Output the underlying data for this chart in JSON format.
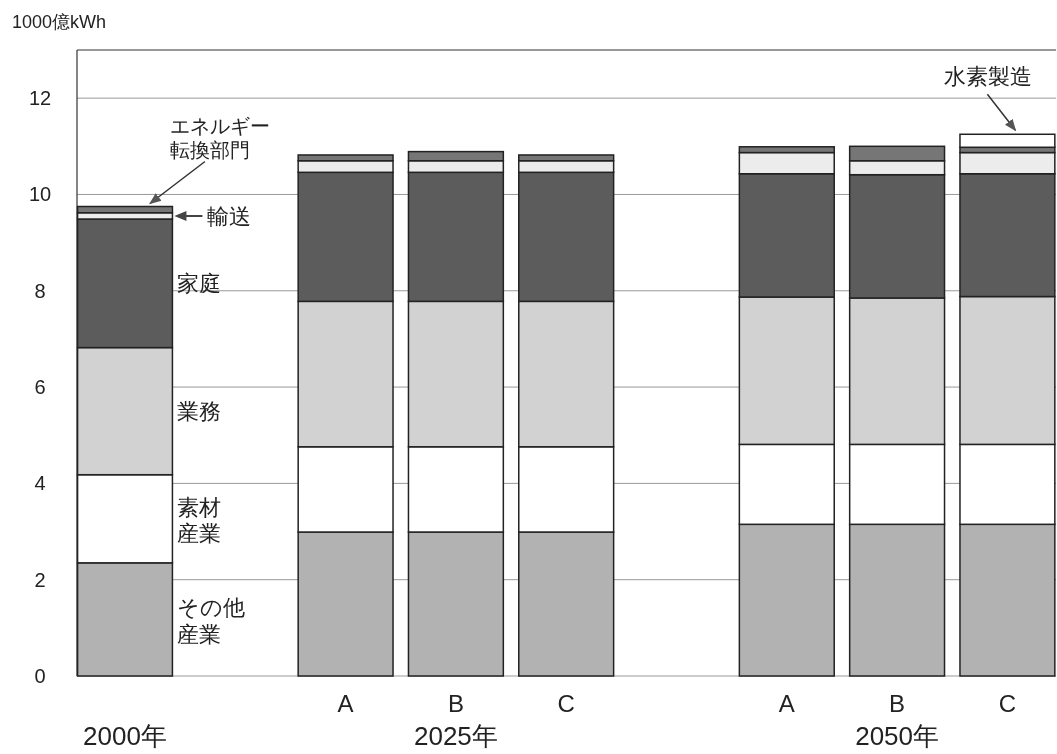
{
  "chart_data": {
    "type": "bar",
    "stacked": true,
    "ylabel": "1000億kWh",
    "categories": [
      null,
      null,
      "A",
      "B",
      "C",
      null,
      "A",
      "B",
      "C"
    ],
    "series": [
      {
        "name": "その他産業",
        "color": "#b2b2b2",
        "values": [
          2.35,
          null,
          2.99,
          2.99,
          2.99,
          null,
          3.15,
          3.15,
          3.15
        ]
      },
      {
        "name": "素材産業",
        "color": "#ffffff",
        "values": [
          1.83,
          null,
          1.77,
          1.77,
          1.77,
          null,
          1.66,
          1.66,
          1.66
        ]
      },
      {
        "name": "業務",
        "color": "#d2d2d2",
        "values": [
          2.64,
          null,
          3.02,
          3.02,
          3.02,
          null,
          3.06,
          3.04,
          3.07
        ]
      },
      {
        "name": "家庭",
        "color": "#5c5c5c",
        "values": [
          2.67,
          null,
          2.68,
          2.68,
          2.68,
          null,
          2.56,
          2.56,
          2.55
        ]
      },
      {
        "name": "輸送",
        "color": "#ececec",
        "values": [
          0.13,
          null,
          0.24,
          0.24,
          0.24,
          null,
          0.44,
          0.29,
          0.44
        ]
      },
      {
        "name": "エネルギー転換部門",
        "color": "#767676",
        "values": [
          0.13,
          null,
          0.12,
          0.19,
          0.12,
          null,
          0.12,
          0.3,
          0.11
        ]
      },
      {
        "name": "水素製造",
        "color": "#ffffff",
        "values": [
          null,
          null,
          null,
          null,
          null,
          null,
          null,
          null,
          0.27
        ]
      }
    ],
    "ylim": [
      0,
      13
    ],
    "yticks": [
      0,
      2,
      4,
      6,
      8,
      10,
      12
    ],
    "grid": "y",
    "legend": false,
    "annotations": [
      "2000年",
      "2025年",
      "2050年"
    ]
  }
}
